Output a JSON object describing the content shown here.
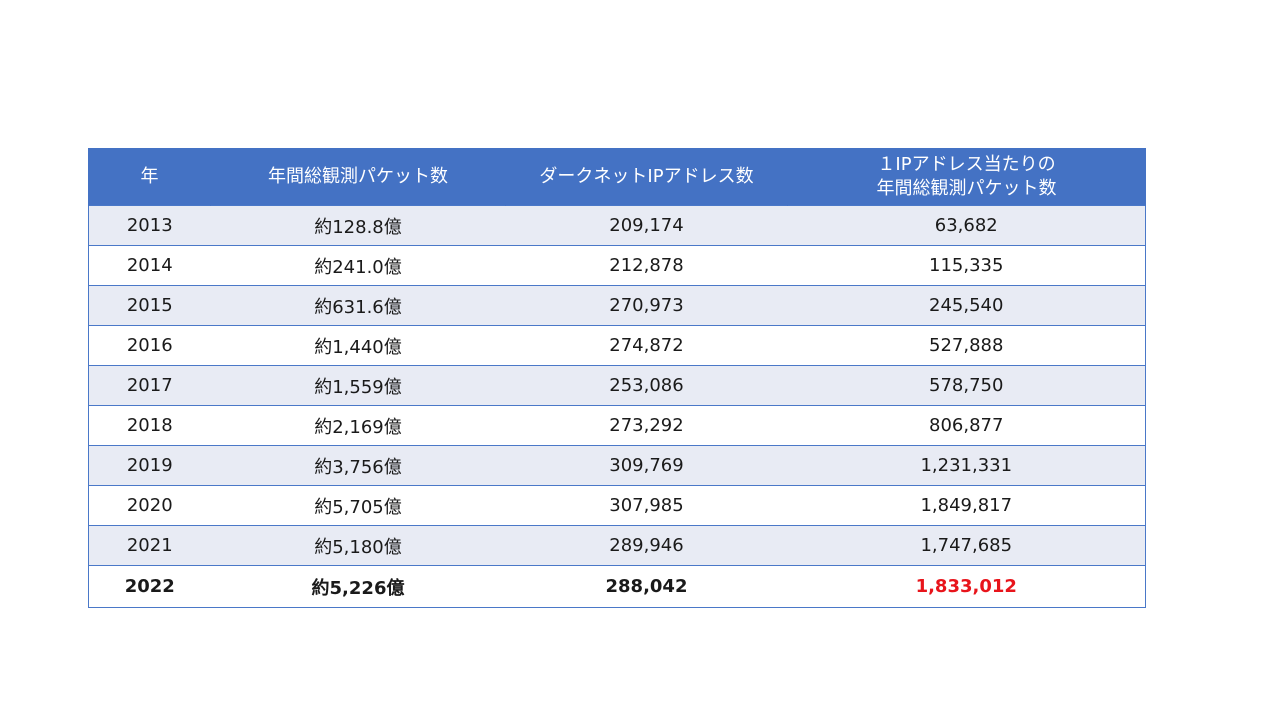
{
  "table": {
    "headers": {
      "year": "年",
      "packets": "年間総観測パケット数",
      "addresses": "ダークネットIPアドレス数",
      "per_ip_line1": "１IPアドレス当たりの",
      "per_ip_line2": "年間総観測パケット数"
    },
    "rows": [
      {
        "year": "2013",
        "packets": "約128.8億",
        "addresses": "209,174",
        "per_ip": "63,682"
      },
      {
        "year": "2014",
        "packets": "約241.0億",
        "addresses": "212,878",
        "per_ip": "115,335"
      },
      {
        "year": "2015",
        "packets": "約631.6億",
        "addresses": "270,973",
        "per_ip": "245,540"
      },
      {
        "year": "2016",
        "packets": "約1,440億",
        "addresses": "274,872",
        "per_ip": "527,888"
      },
      {
        "year": "2017",
        "packets": "約1,559億",
        "addresses": "253,086",
        "per_ip": "578,750"
      },
      {
        "year": "2018",
        "packets": "約2,169億",
        "addresses": "273,292",
        "per_ip": "806,877"
      },
      {
        "year": "2019",
        "packets": "約3,756億",
        "addresses": "309,769",
        "per_ip": "1,231,331"
      },
      {
        "year": "2020",
        "packets": "約5,705億",
        "addresses": "307,985",
        "per_ip": "1,849,817"
      },
      {
        "year": "2021",
        "packets": "約5,180億",
        "addresses": "289,946",
        "per_ip": "1,747,685"
      },
      {
        "year": "2022",
        "packets": "約5,226億",
        "addresses": "288,042",
        "per_ip": "1,833,012"
      }
    ],
    "colors": {
      "header_bg": "#4472c4",
      "band_bg": "#e8ebf4",
      "highlight_text": "#e8141b"
    }
  }
}
